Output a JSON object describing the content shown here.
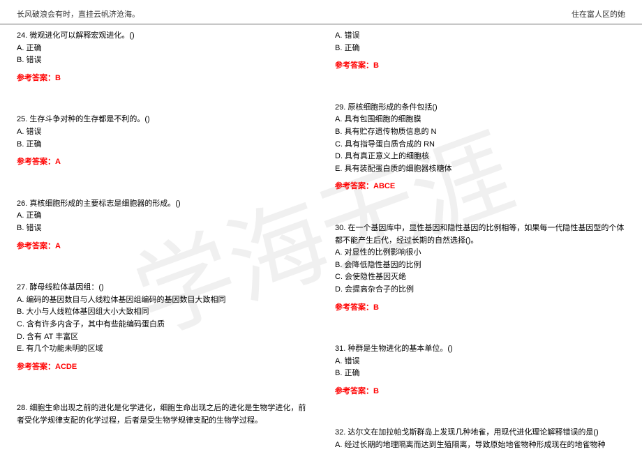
{
  "header": {
    "left": "长风破浪会有时，直挂云帆济沧海。",
    "right": "住在富人区的她"
  },
  "watermark": "学海无涯",
  "answer_label": "参考答案：",
  "left_col": {
    "q24": {
      "text": "24. 微观进化可以解释宏观进化。()",
      "opts": [
        "A. 正确",
        "B. 错误"
      ],
      "answer": "B"
    },
    "q25": {
      "text": "25. 生存斗争对种的生存都是不利的。()",
      "opts": [
        "A. 错误",
        "B. 正确"
      ],
      "answer": "A"
    },
    "q26": {
      "text": "26. 真核细胞形成的主要标志是细胞器的形成。()",
      "opts": [
        "A. 正确",
        "B. 错误"
      ],
      "answer": "A"
    },
    "q27": {
      "text": "27. 酵母线粒体基因组：()",
      "opts": [
        "A. 编码的基因数目与人线粒体基因组编码的基因数目大致相同",
        "B. 大小与人线粒体基因组大小大致相同",
        "C. 含有许多内含子，其中有些能编码蛋白质",
        "D. 含有 AT 丰富区",
        "E. 有几个功能未明的区域"
      ],
      "answer": "ACDE"
    },
    "q28": {
      "text": "28. 细胞生命出现之前的进化是化学进化，细胞生命出现之后的进化是生物学进化，前者受化学规律支配的化学过程，后者是受生物学规律支配的生物学过程。"
    }
  },
  "right_col": {
    "q_top": {
      "opts": [
        "A. 错误",
        "B. 正确"
      ],
      "answer": "B"
    },
    "q29": {
      "text": "29. 原核细胞形成的条件包括()",
      "opts": [
        "A. 具有包围细胞的细胞膜",
        "B. 具有贮存遗传物质信息的 N",
        "C. 具有指导蛋白质合成的 RN",
        "D. 具有真正意义上的细胞核",
        "E. 具有装配蛋白质的细胞器核糖体"
      ],
      "answer": "ABCE"
    },
    "q30": {
      "text": "30. 在一个基因库中，显性基因和隐性基因的比例相等，如果每一代隐性基因型的个体都不能产生后代，经过长期的自然选择()。",
      "opts": [
        "A. 对显性的比例影响很小",
        "B. 会降低隐性基因的比例",
        "C. 会使隐性基因灭绝",
        "D. 会提高杂合子的比例"
      ],
      "answer": "B"
    },
    "q31": {
      "text": "31. 种群是生物进化的基本单位。()",
      "opts": [
        "A. 错误",
        "B. 正确"
      ],
      "answer": "B"
    },
    "q32": {
      "text": "32. 达尔文在加拉帕戈斯群岛上发现几种地雀，用现代进化理论解释错误的是()",
      "opts": [
        "A. 经过长期的地理隔离而达到生殖隔离，导致原始地雀物种形成现在的地雀物种"
      ]
    }
  }
}
